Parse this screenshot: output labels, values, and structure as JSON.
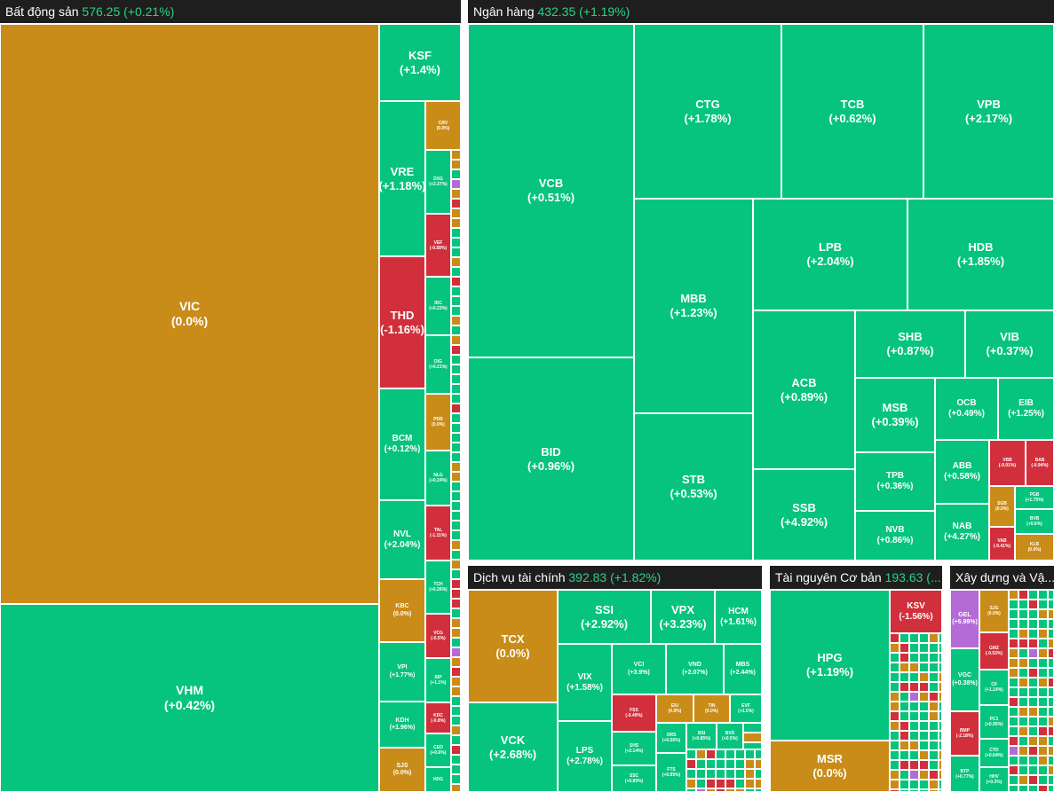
{
  "sectors": {
    "bds": {
      "name": "Bất động sản",
      "value": "576.25 (+0.21%)",
      "tiles": {
        "VIC": {
          "t": "VIC",
          "p": "(0.0%)"
        },
        "VHM": {
          "t": "VHM",
          "p": "(+0.42%)"
        },
        "KSF": {
          "t": "KSF",
          "p": "(+1.4%)"
        },
        "VRE": {
          "t": "VRE",
          "p": "(+1.18%)"
        },
        "THD": {
          "t": "THD",
          "p": "(-1.16%)"
        },
        "BCM": {
          "t": "BCM",
          "p": "(+0.12%)"
        },
        "NVL": {
          "t": "NVL",
          "p": "(+2.04%)"
        },
        "KBC": {
          "t": "KBC",
          "p": "(0.0%)"
        },
        "VPI": {
          "t": "VPI",
          "p": "(+1.77%)"
        },
        "KDH": {
          "t": "KDH",
          "p": "(+1.96%)"
        },
        "SJS": {
          "t": "SJS",
          "p": "(0.0%)"
        },
        "CRV": {
          "t": "CRV",
          "p": "(0.0%)"
        },
        "DXG": {
          "t": "DXG",
          "p": "(+2.37%)"
        },
        "VEF": {
          "t": "VEF",
          "p": "(-0.58%)"
        },
        "IDC": {
          "t": "IDC",
          "p": "(+0.23%)"
        },
        "DIG": {
          "t": "DIG",
          "p": "(+0.21%)"
        },
        "PDR": {
          "t": "PDR",
          "p": "(0.0%)"
        },
        "NLG": {
          "t": "NLG",
          "p": "(+0.24%)"
        },
        "TAL": {
          "t": "TAL",
          "p": "(-1.11%)"
        },
        "TCH": {
          "t": "TCH",
          "p": "(+0.26%)"
        },
        "VCG": {
          "t": "VCG",
          "p": "(-0.5%)"
        },
        "SIP": {
          "t": "SIP",
          "p": "(+1.1%)"
        },
        "KDC": {
          "t": "KDC",
          "p": "(-0.8%)"
        },
        "CEO": {
          "t": "CEO",
          "p": "(+0.6%)"
        },
        "HDG": {
          "t": "HDG",
          "p": ""
        }
      }
    },
    "nh": {
      "name": "Ngân hàng",
      "value": "432.35 (+1.19%)",
      "tiles": {
        "VCB": {
          "t": "VCB",
          "p": "(+0.51%)"
        },
        "BID": {
          "t": "BID",
          "p": "(+0.96%)"
        },
        "CTG": {
          "t": "CTG",
          "p": "(+1.78%)"
        },
        "TCB": {
          "t": "TCB",
          "p": "(+0.62%)"
        },
        "VPB": {
          "t": "VPB",
          "p": "(+2.17%)"
        },
        "MBB": {
          "t": "MBB",
          "p": "(+1.23%)"
        },
        "STB": {
          "t": "STB",
          "p": "(+0.53%)"
        },
        "LPB": {
          "t": "LPB",
          "p": "(+2.04%)"
        },
        "HDB": {
          "t": "HDB",
          "p": "(+1.85%)"
        },
        "ACB": {
          "t": "ACB",
          "p": "(+0.89%)"
        },
        "SSB": {
          "t": "SSB",
          "p": "(+4.92%)"
        },
        "SHB": {
          "t": "SHB",
          "p": "(+0.87%)"
        },
        "VIB": {
          "t": "VIB",
          "p": "(+0.37%)"
        },
        "MSB": {
          "t": "MSB",
          "p": "(+0.39%)"
        },
        "OCB": {
          "t": "OCB",
          "p": "(+0.49%)"
        },
        "EIB": {
          "t": "EIB",
          "p": "(+1.25%)"
        },
        "TPB": {
          "t": "TPB",
          "p": "(+0.36%)"
        },
        "ABB": {
          "t": "ABB",
          "p": "(+0.58%)"
        },
        "NVB": {
          "t": "NVB",
          "p": "(+0.86%)"
        },
        "NAB": {
          "t": "NAB",
          "p": "(+4.27%)"
        },
        "VBB": {
          "t": "VBB",
          "p": "(-0.01%)"
        },
        "BAB": {
          "t": "BAB",
          "p": "(-0.94%)"
        },
        "SGB": {
          "t": "SGB",
          "p": "(0.0%)"
        },
        "PGB": {
          "t": "PGB",
          "p": "(+1.75%)"
        },
        "BVB": {
          "t": "BVB",
          "p": "(+0.6%)"
        },
        "VAB": {
          "t": "VAB",
          "p": "(-0.41%)"
        },
        "KLB": {
          "t": "KLB",
          "p": "(0.0%)"
        }
      }
    },
    "dvtc": {
      "name": "Dịch vụ tài chính",
      "value": "392.83 (+1.82%)",
      "tiles": {
        "TCX": {
          "t": "TCX",
          "p": "(0.0%)"
        },
        "VCK": {
          "t": "VCK",
          "p": "(+2.68%)"
        },
        "SSI": {
          "t": "SSI",
          "p": "(+2.92%)"
        },
        "VPX": {
          "t": "VPX",
          "p": "(+3.23%)"
        },
        "HCM": {
          "t": "HCM",
          "p": "(+1.61%)"
        },
        "VIX": {
          "t": "VIX",
          "p": "(+1.58%)"
        },
        "VCI": {
          "t": "VCI",
          "p": "(+3.9%)"
        },
        "VND": {
          "t": "VND",
          "p": "(+2.07%)"
        },
        "MBS": {
          "t": "MBS",
          "p": "(+2.44%)"
        },
        "LPS": {
          "t": "LPS",
          "p": "(+2.78%)"
        },
        "FSS": {
          "t": "FSS",
          "p": "(-0.49%)"
        },
        "EIU": {
          "t": "EIU",
          "p": "(0.0%)"
        },
        "TIN": {
          "t": "TIN",
          "p": "(0.0%)"
        },
        "EVF": {
          "t": "EVF",
          "p": "(+1.5%)"
        },
        "SHS": {
          "t": "SHS",
          "p": "(+2.14%)"
        },
        "ORS": {
          "t": "ORS",
          "p": "(+0.56%)"
        },
        "BSI": {
          "t": "BSI",
          "p": "(+0.85%)"
        },
        "BVS": {
          "t": "BVS",
          "p": "(+0.5%)"
        },
        "SSC": {
          "t": "SSC",
          "p": "(+0.85%)"
        },
        "FTS": {
          "t": "FTS",
          "p": "(+0.85%)"
        }
      }
    },
    "tnbc": {
      "name": "Tài nguyên Cơ bản",
      "value": "193.63 (...",
      "tiles": {
        "HPG": {
          "t": "HPG",
          "p": "(+1.19%)"
        },
        "MSR": {
          "t": "MSR",
          "p": "(0.0%)"
        },
        "KSV": {
          "t": "KSV",
          "p": "(-1.56%)"
        }
      }
    },
    "xd": {
      "name": "Xây dựng và Vậ...",
      "tiles": {
        "GEL": {
          "t": "GEL",
          "p": "(+6.99%)"
        },
        "VGC": {
          "t": "VGC",
          "p": "(+0.38%)"
        },
        "BMP": {
          "t": "BMP",
          "p": "(-2.18%)"
        },
        "BTP": {
          "t": "BTP",
          "p": "(+0.77%)"
        },
        "SJG": {
          "t": "SJG",
          "p": "(0.0%)"
        },
        "GMZ": {
          "t": "GMZ",
          "p": "(-0.53%)"
        },
        "CII": {
          "t": "CII",
          "p": "(+1.14%)"
        },
        "PC1": {
          "t": "PC1",
          "p": "(+0.95%)"
        },
        "CTD": {
          "t": "CTD",
          "p": "(+0.64%)"
        },
        "HHV": {
          "t": "HHV",
          "p": "(+0.3%)"
        }
      }
    }
  },
  "colors": {
    "up": "#06c47e",
    "ref": "#c98c19",
    "down": "#d12f3c",
    "ceiling": "#b56bd6",
    "header": "#1e1e1e",
    "header_value": "#29d386"
  }
}
